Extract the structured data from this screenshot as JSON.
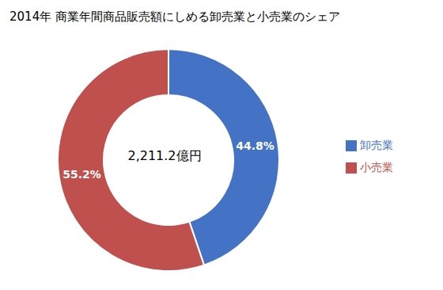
{
  "chart_data": {
    "type": "pie",
    "title": "2014年 商業年間商品販売額にしめる卸売業と小売業のシェア",
    "categories": [
      "卸売業",
      "小売業"
    ],
    "values": [
      44.8,
      55.2
    ],
    "value_labels": [
      "44.8%",
      "55.2%"
    ],
    "colors": [
      "#4472C4",
      "#C0504D"
    ],
    "annotations": [
      "2,211.2億円"
    ],
    "data_labels": true,
    "legend": "right"
  }
}
